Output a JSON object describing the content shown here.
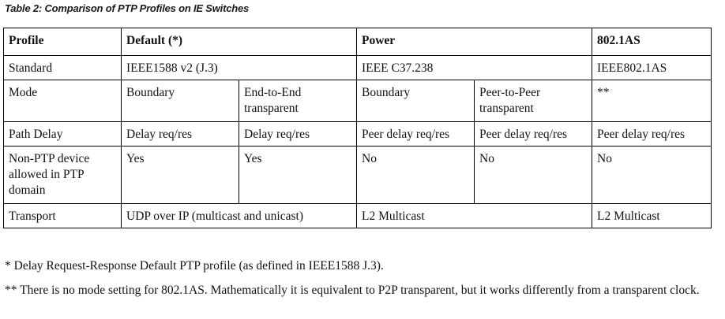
{
  "caption": "Table 2: Comparison of PTP Profiles on IE Switches",
  "table": {
    "header": {
      "profile": "Profile",
      "default": "Default (*)",
      "power": "Power",
      "as": "802.1AS"
    },
    "rows": {
      "standard": {
        "label": "Standard",
        "default": "IEEE1588 v2 (J.3)",
        "power": "IEEE C37.238",
        "as": "IEEE802.1AS"
      },
      "mode": {
        "label": "Mode",
        "default_a": "Boundary",
        "default_b": "End-to-End transparent",
        "power_a": "Boundary",
        "power_b": "Peer-to-Peer transparent",
        "as": "**"
      },
      "path_delay": {
        "label": "Path Delay",
        "default_a": "Delay req/res",
        "default_b": "Delay req/res",
        "power_a": "Peer delay req/res",
        "power_b": "Peer delay req/res",
        "as": "Peer delay req/res"
      },
      "non_ptp": {
        "label": "Non-PTP device allowed in PTP domain",
        "default_a": "Yes",
        "default_b": "Yes",
        "power_a": "No",
        "power_b": "No",
        "as": "No"
      },
      "transport": {
        "label": "Transport",
        "default": "UDP over IP (multicast and unicast)",
        "power": "L2 Multicast",
        "as": "L2 Multicast"
      }
    }
  },
  "notes": {
    "note1": "* Delay Request-Response Default PTP profile (as defined in IEEE1588 J.3).",
    "note2": "** There is no mode setting for 802.1AS. Mathematically it is equivalent to P2P transparent, but it works differently from a transparent clock."
  }
}
